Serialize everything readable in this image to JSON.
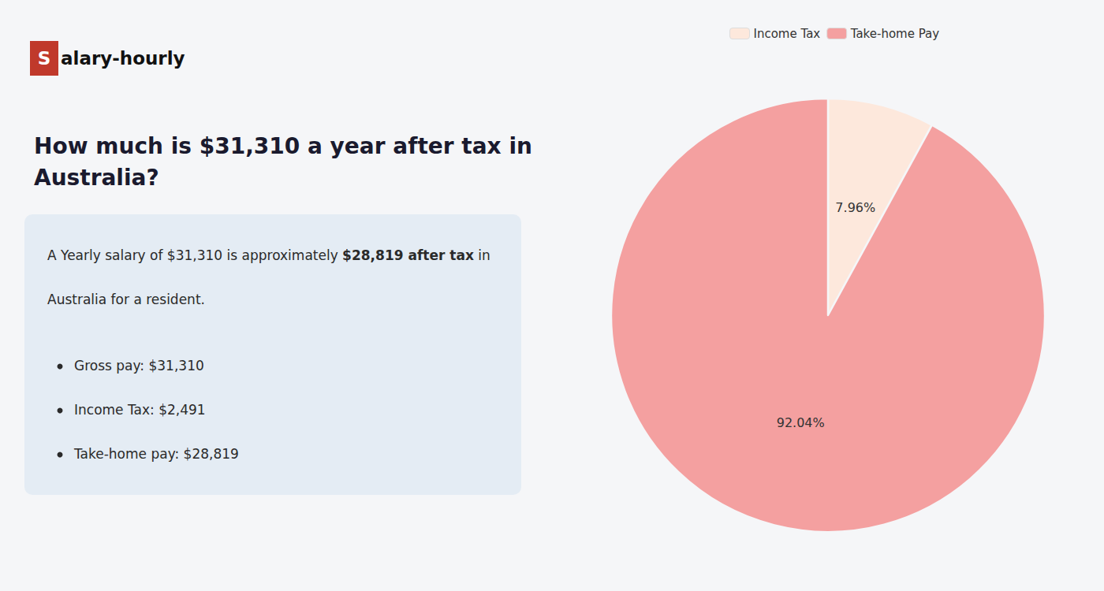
{
  "chart_data": {
    "type": "pie",
    "title": "How much is $31,310 a year after tax in\nAustralia?",
    "categories": [
      "Income Tax",
      "Take-home Pay"
    ],
    "values": [
      7.96,
      92.04
    ],
    "value_labels": [
      "7.96%",
      "92.04%"
    ],
    "colors": [
      "#fde8dc",
      "#f4a0a0"
    ],
    "data_labels": true,
    "legend": "top",
    "annotations": [
      [
        {
          "text": "S",
          "color": "#c0392b"
        },
        {
          "text": "alary-hourly"
        }
      ],
      [
        {
          "text": "A Yearly salary of $31,310 is approximately "
        },
        {
          "text": "$28,819 after tax",
          "color": "#c0392b"
        },
        {
          "text": " in"
        }
      ],
      [
        {
          "text": "Australia for a resident."
        }
      ],
      [
        {
          "text": "Gross pay: $31,310"
        }
      ],
      [
        {
          "text": "Income Tax: $2,491"
        }
      ],
      [
        {
          "text": "Take-home pay: $28,819"
        }
      ]
    ]
  }
}
